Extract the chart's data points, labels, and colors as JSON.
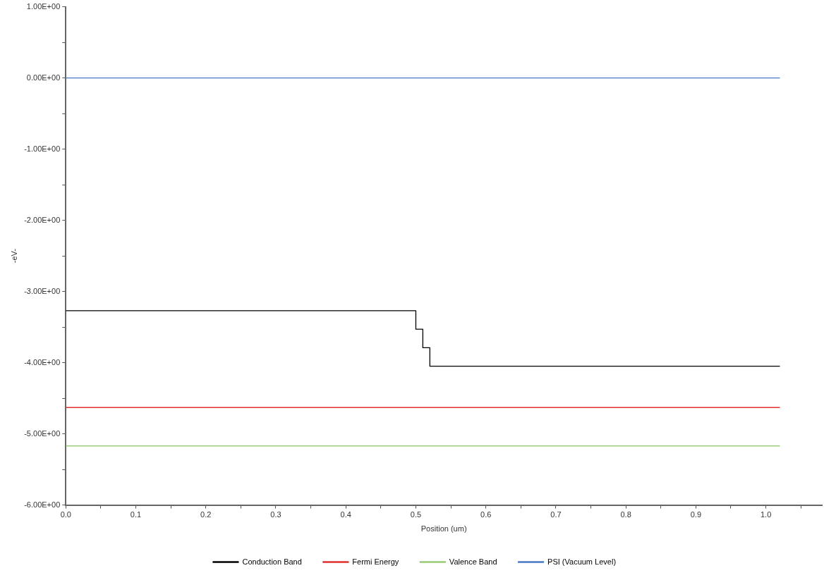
{
  "chart_data": {
    "type": "line",
    "xlabel": "Position (um)",
    "ylabel": "-eV-",
    "xlim": [
      0,
      1.08
    ],
    "ylim": [
      -6,
      1
    ],
    "xticks": [
      {
        "value": 0,
        "label": "0.0"
      },
      {
        "value": 0.05,
        "label": null
      },
      {
        "value": 0.1,
        "label": "0.1"
      },
      {
        "value": 0.15,
        "label": null
      },
      {
        "value": 0.2,
        "label": "0.2"
      },
      {
        "value": 0.25,
        "label": null
      },
      {
        "value": 0.3,
        "label": "0.3"
      },
      {
        "value": 0.35,
        "label": null
      },
      {
        "value": 0.4,
        "label": "0.4"
      },
      {
        "value": 0.45,
        "label": null
      },
      {
        "value": 0.5,
        "label": "0.5"
      },
      {
        "value": 0.55,
        "label": null
      },
      {
        "value": 0.6,
        "label": "0.6"
      },
      {
        "value": 0.65,
        "label": null
      },
      {
        "value": 0.7,
        "label": "0.7"
      },
      {
        "value": 0.75,
        "label": null
      },
      {
        "value": 0.8,
        "label": "0.8"
      },
      {
        "value": 0.85,
        "label": null
      },
      {
        "value": 0.9,
        "label": "0.9"
      },
      {
        "value": 0.95,
        "label": null
      },
      {
        "value": 1.0,
        "label": "1.0"
      },
      {
        "value": 1.05,
        "label": null
      }
    ],
    "yticks": [
      {
        "value": -6,
        "label": "-6.00E+00"
      },
      {
        "value": -5.5,
        "label": null
      },
      {
        "value": -5,
        "label": "-5.00E+00"
      },
      {
        "value": -4.5,
        "label": null
      },
      {
        "value": -4,
        "label": "-4.00E+00"
      },
      {
        "value": -3.5,
        "label": null
      },
      {
        "value": -3,
        "label": "-3.00E+00"
      },
      {
        "value": -2.5,
        "label": null
      },
      {
        "value": -2,
        "label": "-2.00E+00"
      },
      {
        "value": -1.5,
        "label": null
      },
      {
        "value": -1,
        "label": "-1.00E+00"
      },
      {
        "value": -0.5,
        "label": null
      },
      {
        "value": 0,
        "label": "0.00E+00"
      },
      {
        "value": 0.5,
        "label": null
      },
      {
        "value": 1,
        "label": "1.00E+00"
      }
    ],
    "grid": false,
    "legend": "bottom",
    "marker": "none",
    "line_style": "solid",
    "series": [
      {
        "name": "Conduction Band",
        "color": "#000000",
        "x": [
          0,
          0.5,
          0.5,
          0.51,
          0.51,
          0.52,
          0.52,
          1.02
        ],
        "values": [
          -3.27,
          -3.27,
          -3.53,
          -3.53,
          -3.79,
          -3.79,
          -4.05,
          -4.05
        ]
      },
      {
        "name": "Fermi Energy",
        "color": "#e03030",
        "x": [
          0,
          1.02
        ],
        "values": [
          -4.63,
          -4.63
        ]
      },
      {
        "name": "Valence Band",
        "color": "#99cc77",
        "x": [
          0,
          1.02
        ],
        "values": [
          -5.17,
          -5.17
        ]
      },
      {
        "name": "PSI (Vacuum Level)",
        "color": "#4a78c8",
        "x": [
          0,
          1.02
        ],
        "values": [
          0,
          0
        ]
      }
    ]
  }
}
